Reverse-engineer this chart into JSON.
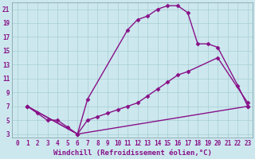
{
  "xlabel": "Windchill (Refroidissement éolien,°C)",
  "bg_color": "#cce8ee",
  "grid_color": "#a8cdd4",
  "line_color": "#881188",
  "xlim": [
    -0.5,
    23.5
  ],
  "ylim": [
    2.5,
    22
  ],
  "xticks": [
    0,
    1,
    2,
    3,
    4,
    5,
    6,
    7,
    8,
    9,
    10,
    11,
    12,
    13,
    14,
    15,
    16,
    17,
    18,
    19,
    20,
    21,
    22,
    23
  ],
  "yticks": [
    3,
    5,
    7,
    9,
    11,
    13,
    15,
    17,
    19,
    21
  ],
  "line1_x": [
    1,
    2,
    3,
    4,
    5,
    6,
    7,
    11,
    12,
    13,
    14,
    15,
    16,
    17,
    18,
    19,
    20,
    22,
    23
  ],
  "line1_y": [
    7,
    6,
    5,
    5,
    4,
    3,
    8,
    18,
    19.5,
    20,
    21,
    21.5,
    21.5,
    20.5,
    16,
    16,
    15.5,
    10,
    7
  ],
  "line2_x": [
    1,
    6,
    7,
    8,
    9,
    10,
    11,
    12,
    13,
    14,
    15,
    16,
    17,
    20,
    23
  ],
  "line2_y": [
    7,
    3,
    5,
    5.5,
    6,
    6.5,
    7,
    7.5,
    8.5,
    9.5,
    10.5,
    11.5,
    12,
    14,
    7.5
  ],
  "line3_x": [
    1,
    6,
    23
  ],
  "line3_y": [
    7,
    3,
    7
  ],
  "marker": "D",
  "markersize": 2.5,
  "linewidth": 1.0,
  "xlabel_fontsize": 6.5,
  "tick_fontsize": 5.5
}
